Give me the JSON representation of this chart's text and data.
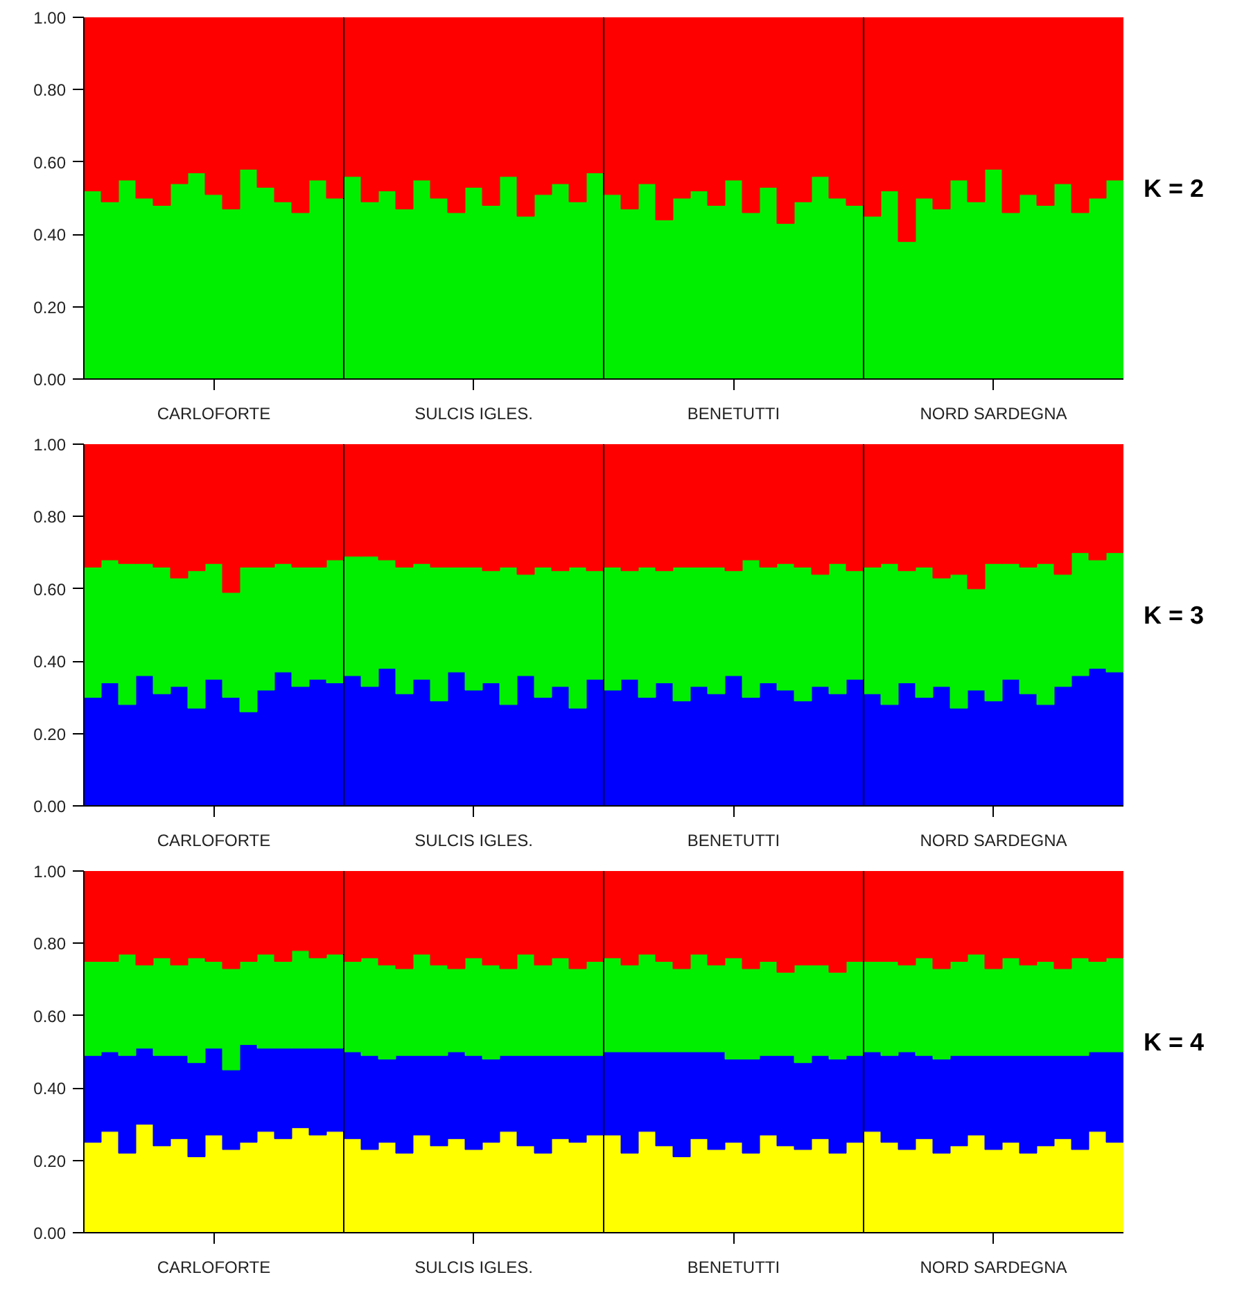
{
  "chart_data": [
    {
      "type": "bar",
      "stacked": true,
      "annotations": [
        "K = 2"
      ],
      "categories": [
        null,
        null,
        null,
        null,
        null,
        null,
        null,
        "CARLOFORTE",
        null,
        null,
        null,
        null,
        null,
        null,
        null,
        null,
        null,
        null,
        null,
        null,
        null,
        null,
        "SULCIS IGLES.",
        null,
        null,
        null,
        null,
        null,
        null,
        null,
        null,
        null,
        null,
        null,
        null,
        null,
        null,
        "BENETUTTI",
        null,
        null,
        null,
        null,
        null,
        null,
        null,
        null,
        null,
        null,
        null,
        null,
        null,
        null,
        "NORD SARDEGNA",
        null,
        null,
        null,
        null,
        null,
        null,
        null
      ],
      "ylim": [
        0,
        1
      ],
      "yticks": [
        {
          "value": 0,
          "label": "0.00"
        },
        {
          "value": 0.2,
          "label": "0.20"
        },
        {
          "value": 0.4,
          "label": "0.40"
        },
        {
          "value": 0.6,
          "label": "0.60"
        },
        {
          "value": 0.8,
          "label": "0.80"
        },
        {
          "value": 1,
          "label": "1.00"
        }
      ],
      "series": [
        {
          "color": "#00ee00",
          "values": [
            0.52,
            0.49,
            0.55,
            0.5,
            0.48,
            0.54,
            0.57,
            0.51,
            0.47,
            0.58,
            0.53,
            0.49,
            0.46,
            0.55,
            0.5,
            0.56,
            0.49,
            0.52,
            0.47,
            0.55,
            0.5,
            0.46,
            0.53,
            0.48,
            0.56,
            0.45,
            0.51,
            0.54,
            0.49,
            0.57,
            0.51,
            0.47,
            0.54,
            0.44,
            0.5,
            0.52,
            0.48,
            0.55,
            0.46,
            0.53,
            0.43,
            0.49,
            0.56,
            0.5,
            0.48,
            0.45,
            0.52,
            0.38,
            0.5,
            0.47,
            0.55,
            0.49,
            0.58,
            0.46,
            0.51,
            0.48,
            0.54,
            0.46,
            0.5,
            0.55
          ]
        },
        {
          "color": "#ff0000",
          "values": [
            0.48,
            0.51,
            0.45,
            0.5,
            0.52,
            0.46,
            0.43,
            0.49,
            0.53,
            0.42,
            0.47,
            0.51,
            0.54,
            0.45,
            0.5,
            0.44,
            0.51,
            0.48,
            0.53,
            0.45,
            0.5,
            0.54,
            0.47,
            0.52,
            0.44,
            0.55,
            0.49,
            0.46,
            0.51,
            0.43,
            0.49,
            0.53,
            0.46,
            0.56,
            0.5,
            0.48,
            0.52,
            0.45,
            0.54,
            0.47,
            0.57,
            0.51,
            0.44,
            0.5,
            0.52,
            0.55,
            0.48,
            0.62,
            0.5,
            0.53,
            0.45,
            0.51,
            0.42,
            0.54,
            0.49,
            0.52,
            0.46,
            0.54,
            0.5,
            0.45
          ]
        }
      ]
    },
    {
      "type": "bar",
      "stacked": true,
      "annotations": [
        "K = 3"
      ],
      "categories": [
        null,
        null,
        null,
        null,
        null,
        null,
        null,
        "CARLOFORTE",
        null,
        null,
        null,
        null,
        null,
        null,
        null,
        null,
        null,
        null,
        null,
        null,
        null,
        null,
        "SULCIS IGLES.",
        null,
        null,
        null,
        null,
        null,
        null,
        null,
        null,
        null,
        null,
        null,
        null,
        null,
        null,
        "BENETUTTI",
        null,
        null,
        null,
        null,
        null,
        null,
        null,
        null,
        null,
        null,
        null,
        null,
        null,
        null,
        "NORD SARDEGNA",
        null,
        null,
        null,
        null,
        null,
        null,
        null
      ],
      "ylim": [
        0,
        1
      ],
      "yticks": [
        {
          "value": 0,
          "label": "0.00"
        },
        {
          "value": 0.2,
          "label": "0.20"
        },
        {
          "value": 0.4,
          "label": "0.40"
        },
        {
          "value": 0.6,
          "label": "0.60"
        },
        {
          "value": 0.8,
          "label": "0.80"
        },
        {
          "value": 1,
          "label": "1.00"
        }
      ],
      "series": [
        {
          "color": "#0000ff",
          "values": [
            0.3,
            0.34,
            0.28,
            0.36,
            0.31,
            0.33,
            0.27,
            0.35,
            0.3,
            0.26,
            0.32,
            0.37,
            0.33,
            0.35,
            0.34,
            0.36,
            0.33,
            0.38,
            0.31,
            0.35,
            0.29,
            0.37,
            0.32,
            0.34,
            0.28,
            0.36,
            0.3,
            0.33,
            0.27,
            0.35,
            0.32,
            0.35,
            0.3,
            0.34,
            0.29,
            0.33,
            0.31,
            0.36,
            0.3,
            0.34,
            0.32,
            0.29,
            0.33,
            0.31,
            0.35,
            0.31,
            0.28,
            0.34,
            0.3,
            0.33,
            0.27,
            0.32,
            0.29,
            0.35,
            0.31,
            0.28,
            0.33,
            0.36,
            0.38,
            0.37
          ]
        },
        {
          "color": "#00ee00",
          "values": [
            0.36,
            0.34,
            0.39,
            0.31,
            0.35,
            0.3,
            0.38,
            0.32,
            0.29,
            0.4,
            0.34,
            0.3,
            0.33,
            0.31,
            0.34,
            0.33,
            0.36,
            0.3,
            0.35,
            0.32,
            0.37,
            0.29,
            0.34,
            0.31,
            0.38,
            0.28,
            0.36,
            0.32,
            0.39,
            0.3,
            0.34,
            0.3,
            0.36,
            0.31,
            0.37,
            0.33,
            0.35,
            0.29,
            0.38,
            0.32,
            0.35,
            0.37,
            0.31,
            0.36,
            0.3,
            0.35,
            0.39,
            0.31,
            0.36,
            0.3,
            0.37,
            0.28,
            0.38,
            0.32,
            0.35,
            0.39,
            0.31,
            0.34,
            0.3,
            0.33
          ]
        },
        {
          "color": "#ff0000",
          "values": [
            0.34,
            0.32,
            0.33,
            0.33,
            0.34,
            0.37,
            0.35,
            0.33,
            0.41,
            0.34,
            0.34,
            0.33,
            0.34,
            0.34,
            0.32,
            0.31,
            0.31,
            0.32,
            0.34,
            0.33,
            0.34,
            0.34,
            0.34,
            0.35,
            0.34,
            0.36,
            0.34,
            0.35,
            0.34,
            0.35,
            0.34,
            0.35,
            0.34,
            0.35,
            0.34,
            0.34,
            0.34,
            0.35,
            0.32,
            0.34,
            0.33,
            0.34,
            0.36,
            0.33,
            0.35,
            0.34,
            0.33,
            0.35,
            0.34,
            0.37,
            0.36,
            0.4,
            0.33,
            0.33,
            0.34,
            0.33,
            0.36,
            0.3,
            0.32,
            0.3
          ]
        }
      ]
    },
    {
      "type": "bar",
      "stacked": true,
      "annotations": [
        "K = 4"
      ],
      "categories": [
        null,
        null,
        null,
        null,
        null,
        null,
        null,
        "CARLOFORTE",
        null,
        null,
        null,
        null,
        null,
        null,
        null,
        null,
        null,
        null,
        null,
        null,
        null,
        null,
        "SULCIS IGLES.",
        null,
        null,
        null,
        null,
        null,
        null,
        null,
        null,
        null,
        null,
        null,
        null,
        null,
        null,
        "BENETUTTI",
        null,
        null,
        null,
        null,
        null,
        null,
        null,
        null,
        null,
        null,
        null,
        null,
        null,
        null,
        "NORD SARDEGNA",
        null,
        null,
        null,
        null,
        null,
        null,
        null
      ],
      "ylim": [
        0,
        1
      ],
      "yticks": [
        {
          "value": 0,
          "label": "0.00"
        },
        {
          "value": 0.2,
          "label": "0.20"
        },
        {
          "value": 0.4,
          "label": "0.40"
        },
        {
          "value": 0.6,
          "label": "0.60"
        },
        {
          "value": 0.8,
          "label": "0.80"
        },
        {
          "value": 1,
          "label": "1.00"
        }
      ],
      "series": [
        {
          "color": "#ffff00",
          "values": [
            0.25,
            0.28,
            0.22,
            0.3,
            0.24,
            0.26,
            0.21,
            0.27,
            0.23,
            0.25,
            0.28,
            0.26,
            0.29,
            0.27,
            0.28,
            0.26,
            0.23,
            0.25,
            0.22,
            0.27,
            0.24,
            0.26,
            0.23,
            0.25,
            0.28,
            0.24,
            0.22,
            0.26,
            0.25,
            0.27,
            0.27,
            0.22,
            0.28,
            0.24,
            0.21,
            0.26,
            0.23,
            0.25,
            0.22,
            0.27,
            0.24,
            0.23,
            0.26,
            0.22,
            0.25,
            0.28,
            0.25,
            0.23,
            0.26,
            0.22,
            0.24,
            0.27,
            0.23,
            0.25,
            0.22,
            0.24,
            0.26,
            0.23,
            0.28,
            0.25
          ]
        },
        {
          "color": "#0000ff",
          "values": [
            0.24,
            0.22,
            0.27,
            0.21,
            0.25,
            0.23,
            0.26,
            0.24,
            0.22,
            0.27,
            0.23,
            0.25,
            0.22,
            0.24,
            0.23,
            0.24,
            0.26,
            0.23,
            0.27,
            0.22,
            0.25,
            0.24,
            0.26,
            0.23,
            0.21,
            0.25,
            0.27,
            0.23,
            0.24,
            0.22,
            0.23,
            0.28,
            0.22,
            0.26,
            0.29,
            0.24,
            0.27,
            0.23,
            0.26,
            0.22,
            0.25,
            0.24,
            0.23,
            0.26,
            0.24,
            0.22,
            0.24,
            0.27,
            0.23,
            0.26,
            0.25,
            0.22,
            0.26,
            0.24,
            0.27,
            0.25,
            0.23,
            0.26,
            0.22,
            0.25
          ]
        },
        {
          "color": "#00ee00",
          "values": [
            0.26,
            0.25,
            0.28,
            0.23,
            0.27,
            0.25,
            0.29,
            0.24,
            0.28,
            0.23,
            0.26,
            0.24,
            0.27,
            0.25,
            0.26,
            0.25,
            0.27,
            0.26,
            0.24,
            0.28,
            0.25,
            0.23,
            0.27,
            0.26,
            0.24,
            0.28,
            0.25,
            0.27,
            0.24,
            0.26,
            0.26,
            0.24,
            0.27,
            0.25,
            0.23,
            0.27,
            0.24,
            0.28,
            0.25,
            0.26,
            0.23,
            0.27,
            0.25,
            0.24,
            0.26,
            0.25,
            0.26,
            0.24,
            0.27,
            0.25,
            0.26,
            0.28,
            0.24,
            0.27,
            0.25,
            0.26,
            0.24,
            0.27,
            0.25,
            0.26
          ]
        },
        {
          "color": "#ff0000",
          "values": [
            0.25,
            0.25,
            0.23,
            0.26,
            0.24,
            0.26,
            0.24,
            0.25,
            0.27,
            0.25,
            0.23,
            0.25,
            0.22,
            0.24,
            0.23,
            0.25,
            0.24,
            0.26,
            0.27,
            0.23,
            0.26,
            0.27,
            0.24,
            0.26,
            0.27,
            0.23,
            0.26,
            0.24,
            0.27,
            0.25,
            0.24,
            0.26,
            0.23,
            0.25,
            0.27,
            0.23,
            0.26,
            0.24,
            0.27,
            0.25,
            0.28,
            0.26,
            0.26,
            0.28,
            0.25,
            0.25,
            0.25,
            0.26,
            0.24,
            0.27,
            0.25,
            0.23,
            0.27,
            0.24,
            0.26,
            0.25,
            0.27,
            0.24,
            0.25,
            0.24
          ]
        }
      ]
    }
  ]
}
